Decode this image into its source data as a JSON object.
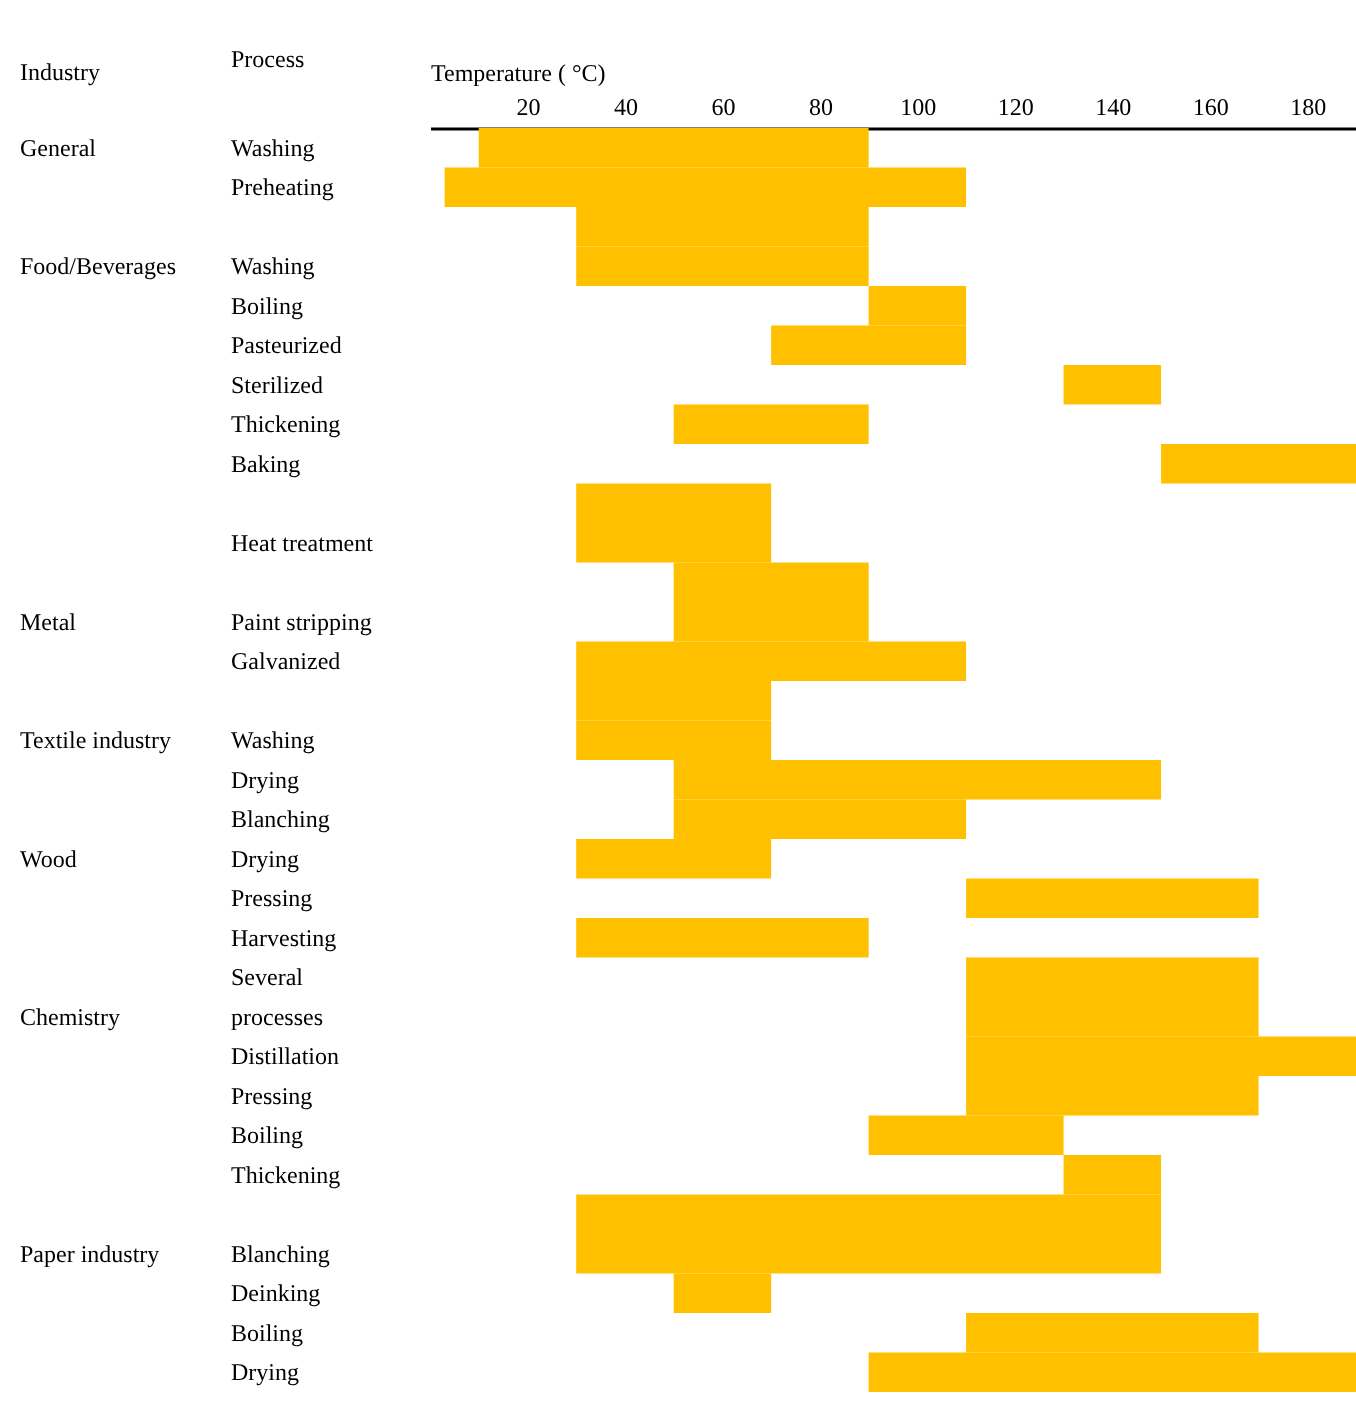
{
  "chart_data": {
    "type": "bar",
    "orientation": "horizontal",
    "xlabel": "Temperature ( °C)",
    "ylabel": "Process",
    "categories": [
      "Washing",
      "Preheating",
      null,
      "Washing",
      "Boiling",
      "Pasteurized",
      "Sterilized",
      "Thickening",
      "Baking",
      null,
      "Heat treatment",
      null,
      "Paint stripping",
      "Galvanized",
      null,
      "Washing",
      "Drying",
      "Blanching",
      "Drying",
      "Pressing",
      "Harvesting",
      "Several",
      "processes",
      "Distillation",
      "Pressing",
      "Boiling",
      "Thickening",
      null,
      "Blanching",
      "Deinking",
      "Boiling",
      "Drying"
    ],
    "base": [
      10,
      3,
      30,
      30,
      90,
      70,
      130,
      50,
      150,
      30,
      30,
      50,
      50,
      30,
      30,
      30,
      50,
      50,
      30,
      110,
      30,
      110,
      110,
      110,
      110,
      90,
      130,
      30,
      30,
      50,
      110,
      90
    ],
    "values": [
      80,
      107,
      60,
      60,
      20,
      40,
      20,
      40,
      40,
      40,
      40,
      40,
      40,
      80,
      40,
      40,
      100,
      60,
      40,
      60,
      60,
      60,
      60,
      80,
      60,
      40,
      20,
      120,
      120,
      20,
      60,
      100
    ],
    "color": "#ffc000",
    "xlim": [
      0,
      190
    ],
    "xticks": [
      20,
      40,
      60,
      80,
      100,
      120,
      140,
      160,
      180
    ],
    "annotations": [
      "Industry",
      "General",
      "Food/Beverages",
      "Metal",
      "Textile industry",
      "Wood",
      "Chemistry",
      "Paper industry"
    ],
    "grid": false
  }
}
